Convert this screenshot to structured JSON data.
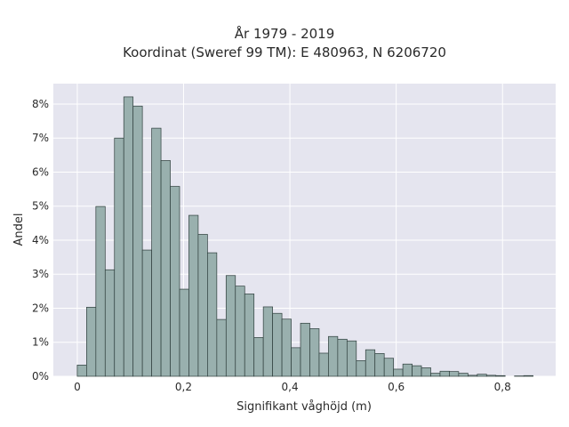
{
  "chart_data": {
    "type": "bar",
    "title_lines": [
      "År 1979 - 2019",
      "Koordinat (Sweref 99 TM): E 480963, N 6206720"
    ],
    "xlabel": "Signifikant våghöjd (m)",
    "ylabel": "Andel",
    "xlim": [
      -0.045,
      0.9
    ],
    "ylim": [
      0,
      0.086
    ],
    "xticks": [
      0,
      0.2,
      0.4,
      0.6,
      0.8
    ],
    "xtick_labels": [
      "0",
      "0,2",
      "0,4",
      "0,6",
      "0,8"
    ],
    "yticks": [
      0,
      0.01,
      0.02,
      0.03,
      0.04,
      0.05,
      0.06,
      0.07,
      0.08
    ],
    "ytick_labels": [
      "0%",
      "1%",
      "2%",
      "3%",
      "4%",
      "5%",
      "6%",
      "7%",
      "8%"
    ],
    "grid": true,
    "bin_width": 0.0175,
    "bin_start": 0,
    "values": [
      0.0033,
      0.0203,
      0.0499,
      0.0313,
      0.07,
      0.0821,
      0.0794,
      0.0371,
      0.0729,
      0.0634,
      0.0558,
      0.0256,
      0.0473,
      0.0417,
      0.0363,
      0.0167,
      0.0296,
      0.0265,
      0.0242,
      0.0114,
      0.0204,
      0.0185,
      0.0168,
      0.0084,
      0.0156,
      0.014,
      0.0068,
      0.0117,
      0.0109,
      0.0104,
      0.0046,
      0.0078,
      0.0067,
      0.0053,
      0.0021,
      0.0036,
      0.0031,
      0.0025,
      0.0009,
      0.0015,
      0.0014,
      0.0009,
      0.0003,
      0.0006,
      0.0003,
      0.0002,
      0,
      0.0001,
      0.0002
    ],
    "colors": {
      "bar_fill": "#99b0ae",
      "bar_stroke": "#2e3e3c",
      "plot_bg": "#e5e5ef",
      "grid": "#ffffff"
    }
  }
}
